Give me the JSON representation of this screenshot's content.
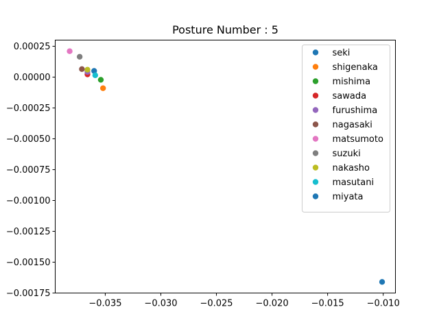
{
  "chart_data": {
    "type": "scatter",
    "title": "Posture Number : 5",
    "xlabel": "",
    "ylabel": "",
    "xlim": [
      -0.0395,
      -0.0089
    ],
    "ylim": [
      -0.00175,
      0.0003
    ],
    "xticks": [
      -0.035,
      -0.03,
      -0.025,
      -0.02,
      -0.015,
      -0.01
    ],
    "xtick_labels": [
      "−0.035",
      "−0.030",
      "−0.025",
      "−0.020",
      "−0.015",
      "−0.010"
    ],
    "yticks": [
      0.00025,
      0.0,
      -0.00025,
      -0.0005,
      -0.00075,
      -0.001,
      -0.00125,
      -0.0015,
      -0.00175
    ],
    "ytick_labels": [
      "0.00025",
      "0.00000",
      "−0.00025",
      "−0.00050",
      "−0.00075",
      "−0.00100",
      "−0.00125",
      "−0.00150",
      "−0.00175"
    ],
    "grid": false,
    "legend_position": "top-right",
    "series": [
      {
        "name": "seki",
        "color": "#1f77b4",
        "x": -0.036,
        "y": 5e-05
      },
      {
        "name": "shigenaka",
        "color": "#ff7f0e",
        "x": -0.0352,
        "y": -9e-05
      },
      {
        "name": "mishima",
        "color": "#2ca02c",
        "x": -0.0354,
        "y": -2.2e-05
      },
      {
        "name": "sawada",
        "color": "#d62728",
        "x": -0.0366,
        "y": 2.2e-05
      },
      {
        "name": "furushima",
        "color": "#9467bd",
        "x": -0.0366,
        "y": 4.2e-05
      },
      {
        "name": "nagasaki",
        "color": "#8c564b",
        "x": -0.0371,
        "y": 6.5e-05
      },
      {
        "name": "matsumoto",
        "color": "#e377c2",
        "x": -0.0382,
        "y": 0.00021
      },
      {
        "name": "suzuki",
        "color": "#7f7f7f",
        "x": -0.0373,
        "y": 0.000165
      },
      {
        "name": "nakasho",
        "color": "#bcbd22",
        "x": -0.0366,
        "y": 6e-05
      },
      {
        "name": "masutani",
        "color": "#17becf",
        "x": -0.0359,
        "y": 1.5e-05
      },
      {
        "name": "miyata",
        "color": "#1f77b4",
        "x": -0.0101,
        "y": -0.00166
      }
    ]
  }
}
